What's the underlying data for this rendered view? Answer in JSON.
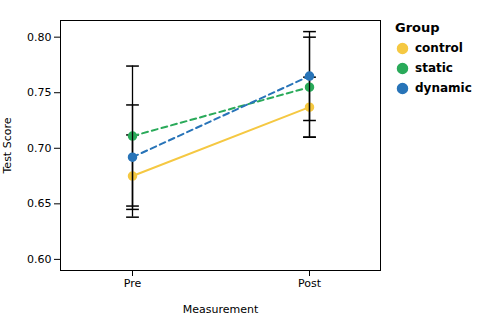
{
  "chart_data": {
    "type": "line",
    "xlabel": "Measurement",
    "ylabel": "Test Score",
    "legend_title": "Group",
    "legend": "right",
    "grid": false,
    "categories": [
      "Pre",
      "Post"
    ],
    "series": [
      {
        "name": "control",
        "color": "#F5C842",
        "line_style": "solid",
        "marker": "circle",
        "values": [
          0.675,
          0.737
        ],
        "ci_low": [
          0.638,
          0.71
        ],
        "ci_high": [
          0.712,
          0.764
        ]
      },
      {
        "name": "static",
        "color": "#2aaa5a",
        "line_style": "dashed",
        "marker": "circle",
        "values": [
          0.711,
          0.755
        ],
        "ci_low": [
          0.648,
          0.71
        ],
        "ci_high": [
          0.774,
          0.8
        ]
      },
      {
        "name": "dynamic",
        "color": "#2874b8",
        "line_style": "dashed",
        "marker": "circle",
        "values": [
          0.692,
          0.765
        ],
        "ci_low": [
          0.645,
          0.725
        ],
        "ci_high": [
          0.739,
          0.805
        ]
      }
    ],
    "ylim": [
      0.59,
      0.815
    ],
    "yticks": [
      {
        "value": 0.6,
        "label": "0.60"
      },
      0.65,
      {
        "value": 0.7,
        "label": "0.70"
      },
      0.75,
      {
        "value": 0.8,
        "label": "0.80"
      }
    ]
  }
}
